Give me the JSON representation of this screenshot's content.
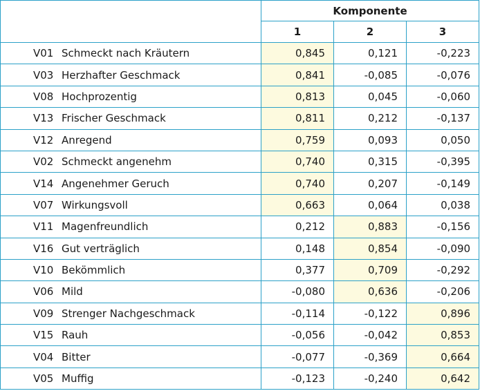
{
  "header": {
    "group_label": "Komponente",
    "columns": [
      "1",
      "2",
      "3"
    ]
  },
  "rows": [
    {
      "code": "V01",
      "label": "Schmeckt nach Kräutern",
      "values": [
        "0,845",
        "0,121",
        "-0,223"
      ],
      "highlight": 0
    },
    {
      "code": "V03",
      "label": "Herzhafter Geschmack",
      "values": [
        "0,841",
        "-0,085",
        "-0,076"
      ],
      "highlight": 0
    },
    {
      "code": "V08",
      "label": "Hochprozentig",
      "values": [
        "0,813",
        "0,045",
        "-0,060"
      ],
      "highlight": 0
    },
    {
      "code": "V13",
      "label": "Frischer Geschmack",
      "values": [
        "0,811",
        "0,212",
        "-0,137"
      ],
      "highlight": 0
    },
    {
      "code": "V12",
      "label": "Anregend",
      "values": [
        "0,759",
        "0,093",
        "0,050"
      ],
      "highlight": 0
    },
    {
      "code": "V02",
      "label": "Schmeckt angenehm",
      "values": [
        "0,740",
        "0,315",
        "-0,395"
      ],
      "highlight": 0
    },
    {
      "code": "V14",
      "label": "Angenehmer Geruch",
      "values": [
        "0,740",
        "0,207",
        "-0,149"
      ],
      "highlight": 0
    },
    {
      "code": "V07",
      "label": "Wirkungsvoll",
      "values": [
        "0,663",
        "0,064",
        "0,038"
      ],
      "highlight": 0
    },
    {
      "code": "V11",
      "label": "Magenfreundlich",
      "values": [
        "0,212",
        "0,883",
        "-0,156"
      ],
      "highlight": 1
    },
    {
      "code": "V16",
      "label": "Gut verträglich",
      "values": [
        "0,148",
        "0,854",
        "-0,090"
      ],
      "highlight": 1
    },
    {
      "code": "V10",
      "label": "Bekömmlich",
      "values": [
        "0,377",
        "0,709",
        "-0,292"
      ],
      "highlight": 1
    },
    {
      "code": "V06",
      "label": "Mild",
      "values": [
        "-0,080",
        "0,636",
        "-0,206"
      ],
      "highlight": 1
    },
    {
      "code": "V09",
      "label": "Strenger Nachgeschmack",
      "values": [
        "-0,114",
        "-0,122",
        "0,896"
      ],
      "highlight": 2
    },
    {
      "code": "V15",
      "label": "Rauh",
      "values": [
        "-0,056",
        "-0,042",
        "0,853"
      ],
      "highlight": 2
    },
    {
      "code": "V04",
      "label": "Bitter",
      "values": [
        "-0,077",
        "-0,369",
        "0,664"
      ],
      "highlight": 2
    },
    {
      "code": "V05",
      "label": "Muffig",
      "values": [
        "-0,123",
        "-0,240",
        "0,642"
      ],
      "highlight": 2
    }
  ],
  "colors": {
    "border": "#2aa0c8",
    "highlight": "#fdfadf"
  }
}
